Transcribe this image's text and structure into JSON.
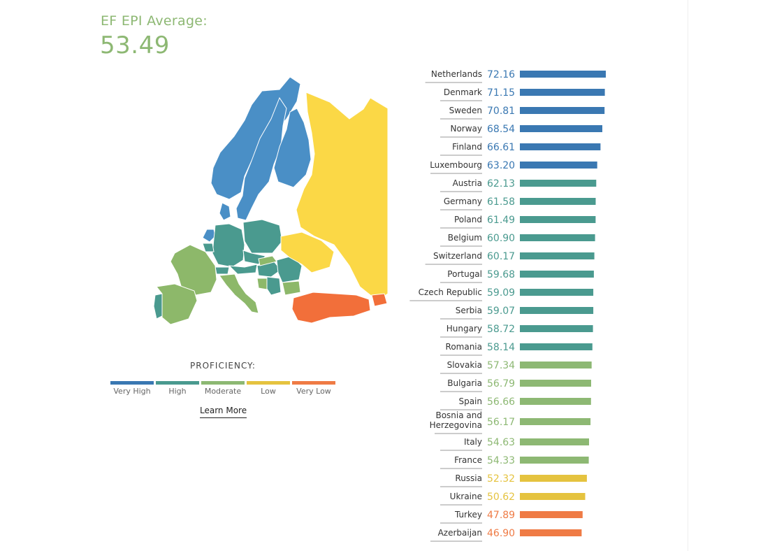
{
  "header": {
    "average_label": "EF EPI Average:",
    "average_value": "53.49"
  },
  "legend": {
    "title": "PROFICIENCY:",
    "items": [
      {
        "label": "Very High",
        "color": "#3a78b2"
      },
      {
        "label": "High",
        "color": "#4a9a8f"
      },
      {
        "label": "Moderate",
        "color": "#8db873"
      },
      {
        "label": "Low",
        "color": "#e5c33f"
      },
      {
        "label": "Very Low",
        "color": "#ef7b45"
      }
    ],
    "link_label": "Learn More"
  },
  "colors": {
    "very_high": "#3a78b2",
    "high": "#4a9a8f",
    "moderate": "#8db873",
    "low": "#e5c33f",
    "very_low": "#ef7b45",
    "map_very_high": "#4a8fc6",
    "map_high": "#4a9a8f",
    "map_moderate": "#8db86a",
    "map_low": "#fbd846",
    "map_very_low": "#f26f3a"
  },
  "chart_data": {
    "type": "bar",
    "orientation": "horizontal",
    "categories": [
      "Netherlands",
      "Denmark",
      "Sweden",
      "Norway",
      "Finland",
      "Luxembourg",
      "Austria",
      "Germany",
      "Poland",
      "Belgium",
      "Switzerland",
      "Portugal",
      "Czech Republic",
      "Serbia",
      "Hungary",
      "Romania",
      "Slovakia",
      "Bulgaria",
      "Spain",
      "Bosnia and Herzegovina",
      "Italy",
      "France",
      "Russia",
      "Ukraine",
      "Turkey",
      "Azerbaijan"
    ],
    "values": [
      72.16,
      71.15,
      70.81,
      68.54,
      66.61,
      63.2,
      62.13,
      61.58,
      61.49,
      60.9,
      60.17,
      59.68,
      59.09,
      59.07,
      58.72,
      58.14,
      57.34,
      56.79,
      56.66,
      56.17,
      54.63,
      54.33,
      52.32,
      50.62,
      47.89,
      46.9
    ],
    "value_labels": [
      "72.16",
      "71.15",
      "70.81",
      "68.54",
      "66.61",
      "63.20",
      "62.13",
      "61.58",
      "61.49",
      "60.90",
      "60.17",
      "59.68",
      "59.09",
      "59.07",
      "58.72",
      "58.14",
      "57.34",
      "56.79",
      "56.66",
      "56.17",
      "54.63",
      "54.33",
      "52.32",
      "50.62",
      "47.89",
      "46.90"
    ],
    "bands": [
      "very_high",
      "very_high",
      "very_high",
      "very_high",
      "very_high",
      "very_high",
      "high",
      "high",
      "high",
      "high",
      "high",
      "high",
      "high",
      "high",
      "high",
      "high",
      "moderate",
      "moderate",
      "moderate",
      "moderate",
      "moderate",
      "moderate",
      "low",
      "low",
      "very_low",
      "very_low"
    ]
  }
}
